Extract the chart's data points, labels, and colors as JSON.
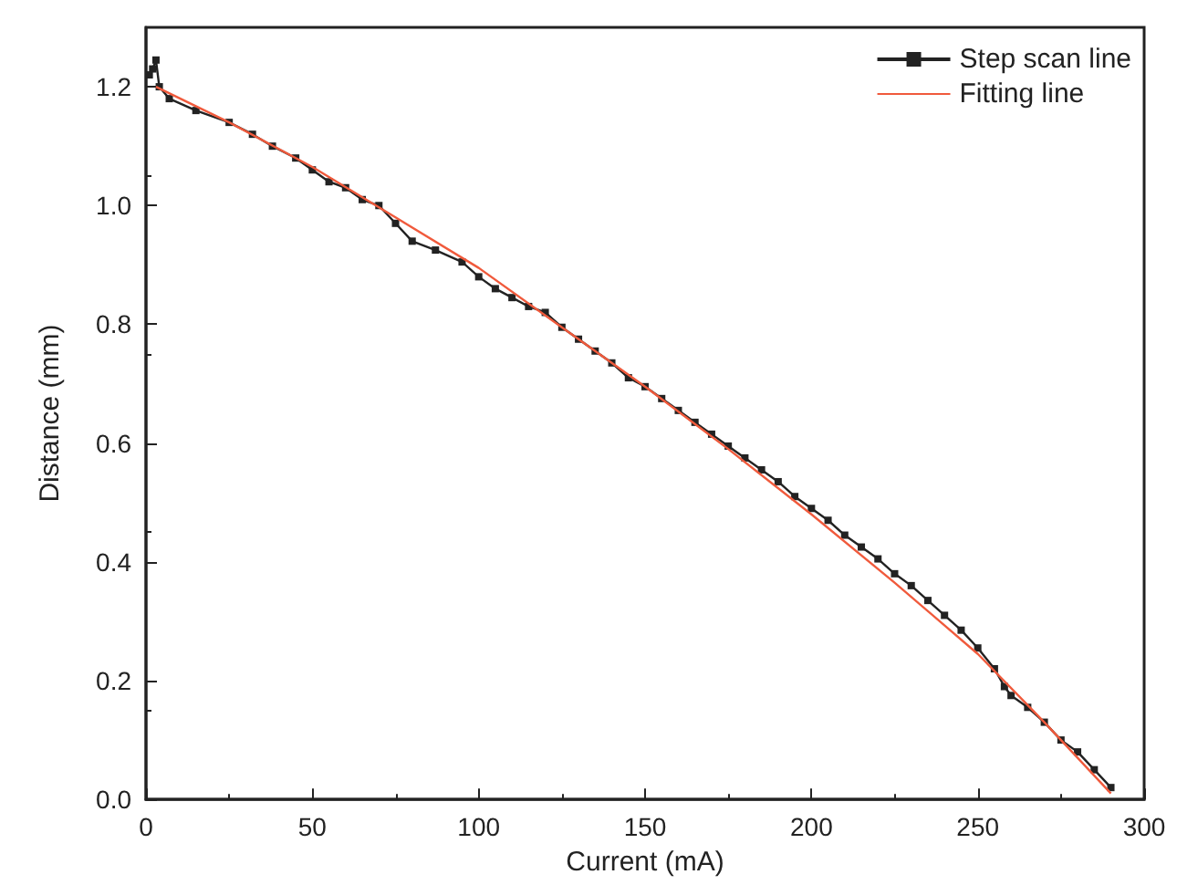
{
  "chart_data": {
    "type": "line",
    "xlabel": "Current (mA)",
    "ylabel": "Distance (mm)",
    "xlim": [
      0,
      300
    ],
    "xticks": [
      0,
      50,
      100,
      150,
      200,
      250,
      300
    ],
    "ylim": [
      0,
      1.3
    ],
    "yticks": [
      {
        "value": 0,
        "label": "0.0"
      },
      0.2,
      0.4,
      0.6,
      0.8,
      {
        "value": 1,
        "label": "1.0"
      },
      1.2
    ],
    "grid": false,
    "legend": "top right",
    "series": [
      {
        "name": "Step scan line",
        "color": "#222222",
        "marker": "square",
        "x": [
          1,
          2,
          3,
          4,
          7,
          15,
          25,
          32,
          38,
          45,
          50,
          55,
          60,
          65,
          70,
          75,
          80,
          87,
          95,
          100,
          105,
          110,
          115,
          120,
          125,
          130,
          135,
          140,
          145,
          150,
          155,
          160,
          165,
          170,
          175,
          180,
          185,
          190,
          195,
          200,
          205,
          210,
          215,
          220,
          225,
          230,
          235,
          240,
          245,
          250,
          255,
          258,
          260,
          265,
          270,
          275,
          280,
          285,
          290
        ],
        "values": [
          1.22,
          1.23,
          1.245,
          1.2,
          1.18,
          1.16,
          1.14,
          1.12,
          1.1,
          1.08,
          1.06,
          1.04,
          1.03,
          1.01,
          1.0,
          0.97,
          0.94,
          0.925,
          0.905,
          0.88,
          0.86,
          0.845,
          0.83,
          0.82,
          0.795,
          0.775,
          0.755,
          0.735,
          0.71,
          0.695,
          0.675,
          0.655,
          0.635,
          0.615,
          0.595,
          0.575,
          0.555,
          0.535,
          0.51,
          0.49,
          0.47,
          0.445,
          0.425,
          0.405,
          0.38,
          0.36,
          0.335,
          0.31,
          0.285,
          0.255,
          0.22,
          0.19,
          0.175,
          0.155,
          0.13,
          0.1,
          0.08,
          0.05,
          0.02
        ]
      },
      {
        "name": "Fitting line",
        "color": "#f05a3c",
        "marker": "none",
        "x": [
          3,
          25,
          50,
          75,
          100,
          125,
          150,
          175,
          200,
          225,
          250,
          270,
          290
        ],
        "values": [
          1.2,
          1.14,
          1.065,
          0.98,
          0.895,
          0.795,
          0.695,
          0.59,
          0.48,
          0.365,
          0.245,
          0.13,
          0.01
        ]
      }
    ]
  }
}
